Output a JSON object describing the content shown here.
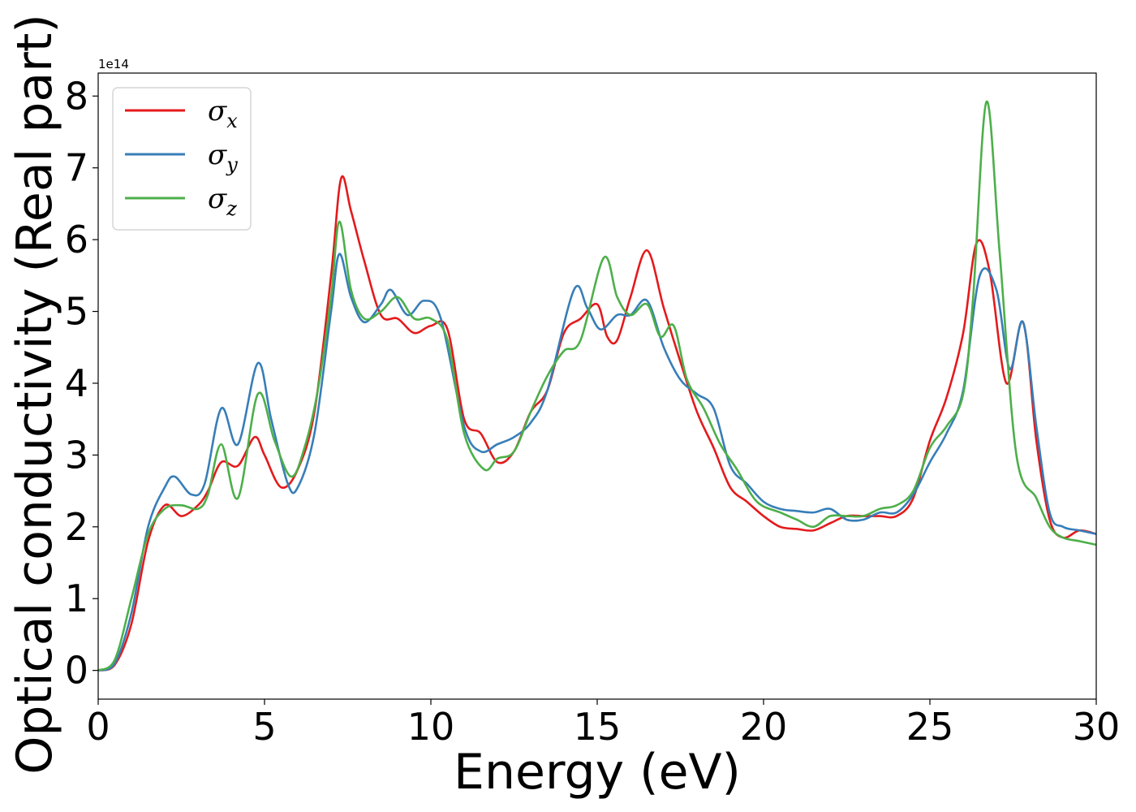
{
  "chart_data": {
    "type": "line",
    "title": "",
    "xlabel": "Energy (eV)",
    "ylabel": "Optical conductivity (Real part)",
    "y_offset_label": "1e14",
    "xlim": [
      0,
      30
    ],
    "ylim": [
      -0.4,
      8.32
    ],
    "xticks": [
      0,
      5,
      10,
      15,
      20,
      25,
      30
    ],
    "yticks": [
      0,
      1,
      2,
      3,
      4,
      5,
      6,
      7,
      8
    ],
    "grid": false,
    "legend_position": "upper-left",
    "series": [
      {
        "name": "σx",
        "legend_base": "σ",
        "legend_sub": "x",
        "color": "#e41a1c",
        "x": [
          0,
          0.5,
          1.0,
          1.5,
          2.0,
          2.5,
          3.0,
          3.3,
          3.7,
          4.2,
          4.7,
          5.0,
          5.5,
          6.0,
          6.5,
          7.0,
          7.3,
          7.6,
          8.0,
          8.5,
          9.0,
          9.5,
          10.0,
          10.5,
          11.0,
          11.5,
          12.0,
          12.5,
          13.0,
          13.5,
          14.0,
          14.5,
          15.0,
          15.3,
          15.6,
          16.0,
          16.5,
          17.0,
          17.5,
          18.0,
          18.5,
          19.0,
          19.5,
          20.0,
          20.5,
          21.0,
          21.5,
          22.0,
          22.5,
          23.0,
          23.5,
          24.0,
          24.5,
          25.0,
          25.5,
          26.0,
          26.4,
          26.8,
          27.3,
          27.8,
          28.2,
          28.6,
          29.0,
          29.5,
          30.0
        ],
        "values": [
          0,
          0.08,
          0.65,
          1.8,
          2.3,
          2.15,
          2.3,
          2.5,
          2.9,
          2.85,
          3.25,
          3.0,
          2.55,
          2.8,
          3.6,
          5.5,
          6.85,
          6.4,
          5.7,
          4.95,
          4.9,
          4.7,
          4.8,
          4.75,
          3.5,
          3.3,
          2.9,
          3.05,
          3.6,
          3.9,
          4.7,
          4.9,
          5.1,
          4.65,
          4.6,
          5.2,
          5.85,
          5.05,
          4.3,
          3.6,
          3.1,
          2.55,
          2.35,
          2.15,
          2.0,
          1.97,
          1.95,
          2.05,
          2.15,
          2.15,
          2.15,
          2.15,
          2.4,
          3.2,
          3.8,
          4.7,
          5.95,
          5.55,
          4.0,
          4.85,
          3.2,
          2.1,
          1.85,
          1.95,
          1.9
        ]
      },
      {
        "name": "σy",
        "legend_base": "σ",
        "legend_sub": "y",
        "color": "#377eb8",
        "x": [
          0,
          0.5,
          1.0,
          1.5,
          2.0,
          2.3,
          2.8,
          3.2,
          3.7,
          4.2,
          4.8,
          5.2,
          5.7,
          6.0,
          6.5,
          7.0,
          7.25,
          7.6,
          8.0,
          8.5,
          8.8,
          9.3,
          9.8,
          10.3,
          11.0,
          11.5,
          12.0,
          12.5,
          13.0,
          13.5,
          14.3,
          14.7,
          15.1,
          15.6,
          16.0,
          16.5,
          17.0,
          17.5,
          18.0,
          18.5,
          19.0,
          19.5,
          20.0,
          20.5,
          21.0,
          21.5,
          22.0,
          22.5,
          23.0,
          23.5,
          24.0,
          24.5,
          25.0,
          25.5,
          26.0,
          26.5,
          27.0,
          27.4,
          27.8,
          28.2,
          28.6,
          29.0,
          29.5,
          30.0
        ],
        "values": [
          0,
          0.1,
          0.8,
          2.0,
          2.55,
          2.7,
          2.45,
          2.6,
          3.65,
          3.15,
          4.28,
          3.5,
          2.6,
          2.55,
          3.3,
          5.0,
          5.8,
          5.2,
          4.85,
          5.1,
          5.3,
          4.95,
          5.15,
          4.9,
          3.4,
          3.05,
          3.15,
          3.25,
          3.45,
          3.9,
          5.3,
          5.05,
          4.75,
          4.95,
          4.95,
          5.15,
          4.5,
          4.05,
          3.85,
          3.65,
          2.85,
          2.6,
          2.35,
          2.25,
          2.22,
          2.2,
          2.25,
          2.1,
          2.1,
          2.2,
          2.2,
          2.45,
          2.9,
          3.3,
          3.9,
          5.5,
          5.3,
          4.2,
          4.85,
          3.4,
          2.2,
          2.0,
          1.95,
          1.9
        ]
      },
      {
        "name": "σz",
        "legend_base": "σ",
        "legend_sub": "z",
        "color": "#4daf4a",
        "x": [
          0,
          0.5,
          1.0,
          1.5,
          2.0,
          2.5,
          3.0,
          3.3,
          3.7,
          4.2,
          4.8,
          5.3,
          5.8,
          6.2,
          6.6,
          7.0,
          7.25,
          7.6,
          8.0,
          8.5,
          9.0,
          9.5,
          10.0,
          10.5,
          11.0,
          11.6,
          12.0,
          12.5,
          13.0,
          13.5,
          14.0,
          14.5,
          15.2,
          15.6,
          16.0,
          16.5,
          16.9,
          17.3,
          17.7,
          18.2,
          18.7,
          19.2,
          19.8,
          20.5,
          21.0,
          21.5,
          22.0,
          22.5,
          23.0,
          23.5,
          24.0,
          24.5,
          25.0,
          25.5,
          26.0,
          26.3,
          26.7,
          27.1,
          27.6,
          28.2,
          28.6,
          29.0,
          29.5,
          30.0
        ],
        "values": [
          0,
          0.15,
          1.0,
          1.9,
          2.25,
          2.3,
          2.25,
          2.45,
          3.15,
          2.4,
          3.85,
          3.2,
          2.7,
          3.1,
          3.9,
          5.2,
          6.25,
          5.3,
          4.9,
          5.0,
          5.2,
          4.9,
          4.9,
          4.6,
          3.3,
          2.8,
          2.95,
          3.05,
          3.6,
          4.1,
          4.45,
          4.6,
          5.75,
          5.2,
          4.95,
          5.1,
          4.65,
          4.8,
          4.05,
          3.65,
          3.15,
          2.8,
          2.35,
          2.2,
          2.1,
          2.0,
          2.15,
          2.15,
          2.15,
          2.25,
          2.3,
          2.5,
          3.1,
          3.4,
          3.85,
          5.2,
          7.92,
          5.8,
          3.0,
          2.4,
          2.0,
          1.85,
          1.8,
          1.75
        ]
      }
    ]
  }
}
